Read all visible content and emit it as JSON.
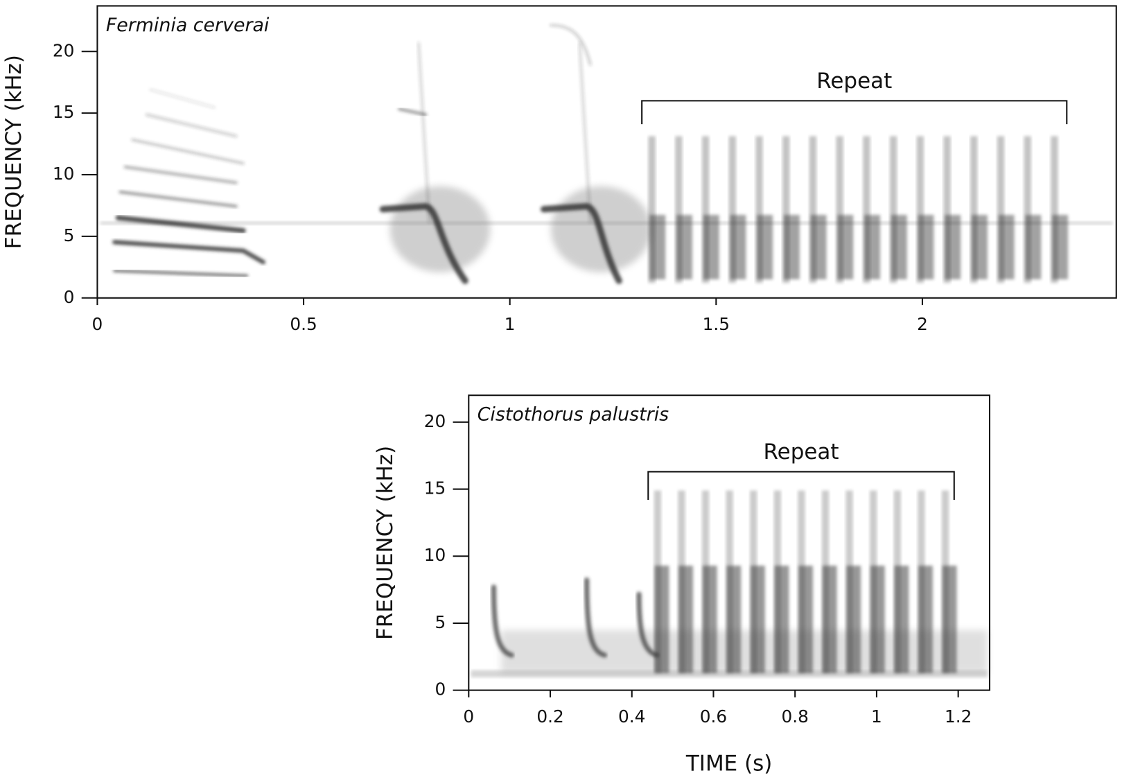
{
  "chart_data": [
    {
      "type": "spectrogram",
      "title": "Ferminia cerverai",
      "y_label": "FREQUENCY (kHz)",
      "xlim": [
        0,
        2.47
      ],
      "xticks": [
        0,
        0.5,
        1,
        1.5,
        2
      ],
      "ylim": [
        0,
        23.7
      ],
      "yticks": [
        0,
        5,
        10,
        15,
        20
      ],
      "annotation": {
        "text": "Repeat",
        "x": [
          1.32,
          2.35
        ],
        "y": 16.0,
        "y_end": 14.1
      }
    },
    {
      "type": "spectrogram",
      "title": "Cistothorus palustris",
      "y_label": "FREQUENCY (kHz)",
      "x_label": "TIME (s)",
      "xlim": [
        0,
        1.277
      ],
      "xticks": [
        0,
        0.2,
        0.4,
        0.6,
        0.8,
        1,
        1.2
      ],
      "ylim": [
        0,
        22
      ],
      "yticks": [
        0,
        5,
        10,
        15,
        20
      ],
      "annotation": {
        "text": "Repeat",
        "x": [
          0.44,
          1.19
        ],
        "y": 16.3,
        "y_end": 14.2
      }
    }
  ]
}
